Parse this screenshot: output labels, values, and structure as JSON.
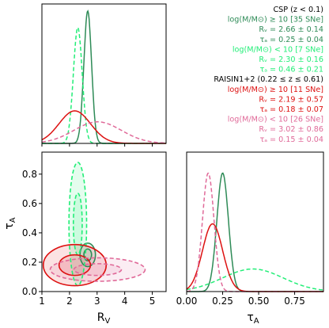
{
  "chart_data": {
    "type": "corner",
    "legend": [
      {
        "text": "CSP ($z < 0.1$)",
        "display": "CSP (z < 0.1)",
        "color": "#000000"
      },
      {
        "text": "log(M/M⊙) ≥ 10 [35 SNe]",
        "color": "#2e8b57"
      },
      {
        "text": "R_V = 2.66 ± 0.14",
        "display": "Rᵥ = 2.66 ± 0.14",
        "color": "#2e8b57"
      },
      {
        "text": "τ_A = 0.25 ± 0.04",
        "display": "τₐ = 0.25 ± 0.04",
        "color": "#2e8b57"
      },
      {
        "text": "log(M/M⊙) < 10 [7 SNe]",
        "color": "#22ee77"
      },
      {
        "text": "R_V = 2.30 ± 0.16",
        "display": "Rᵥ = 2.30 ± 0.16",
        "color": "#22ee77"
      },
      {
        "text": "τ_A = 0.46 ± 0.21",
        "display": "τₐ = 0.46 ± 0.21",
        "color": "#22ee77"
      },
      {
        "text": "RAISIN1+2 (0.22 ≤ z ≤ 0.61)",
        "color": "#000000"
      },
      {
        "text": "log(M/M⊙) ≥ 10 [11 SNe]",
        "color": "#dd1111"
      },
      {
        "text": "R_V = 2.19 ± 0.57",
        "display": "Rᵥ = 2.19 ± 0.57",
        "color": "#dd1111"
      },
      {
        "text": "τ_A = 0.18 ± 0.07",
        "display": "τₐ = 0.18 ± 0.07",
        "color": "#dd1111"
      },
      {
        "text": "log(M/M⊙) < 10 [26 SNe]",
        "color": "#e06a99"
      },
      {
        "text": "R_V = 3.02 ± 0.86",
        "display": "Rᵥ = 3.02 ± 0.86",
        "color": "#e06a99"
      },
      {
        "text": "τ_A = 0.15 ± 0.04",
        "display": "τₐ = 0.15 ± 0.04",
        "color": "#e06a99"
      }
    ],
    "xlabel_left": "R_V",
    "xlabel_right": "τ_A",
    "ylabel": "τ_A",
    "rv_range": [
      1.0,
      5.5
    ],
    "tau_range": [
      0.0,
      0.95
    ],
    "rv_ticks": [
      "1",
      "2",
      "3",
      "4",
      "5"
    ],
    "tau_ticks_y": [
      "0.0",
      "0.2",
      "0.4",
      "0.6",
      "0.8"
    ],
    "tau_ticks_x": [
      "0.00",
      "0.25",
      "0.50",
      "0.75"
    ],
    "series": [
      {
        "name": "CSP log(M/M⊙) ≥ 10",
        "rv_mean": 2.66,
        "rv_sd": 0.14,
        "tau_mean": 0.25,
        "tau_sd": 0.04,
        "color": "#2e8b57",
        "dash": false
      },
      {
        "name": "CSP log(M/M⊙) < 10",
        "rv_mean": 2.3,
        "rv_sd": 0.16,
        "tau_mean": 0.46,
        "tau_sd": 0.21,
        "color": "#22ee77",
        "dash": true
      },
      {
        "name": "RAISIN log(M/M⊙) ≥ 10",
        "rv_mean": 2.19,
        "rv_sd": 0.57,
        "tau_mean": 0.18,
        "tau_sd": 0.07,
        "color": "#dd1111",
        "dash": false
      },
      {
        "name": "RAISIN log(M/M⊙) < 10",
        "rv_mean": 3.02,
        "rv_sd": 0.86,
        "tau_mean": 0.15,
        "tau_sd": 0.04,
        "color": "#e06a99",
        "dash": true
      }
    ],
    "grid": false
  }
}
